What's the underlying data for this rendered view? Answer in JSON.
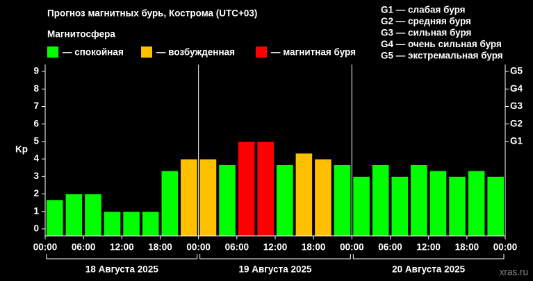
{
  "chart_data": {
    "type": "bar",
    "title": "Прогноз магнитных бурь, Кострома (UTC+03)",
    "legend_title": "Магнитосфера",
    "legend": [
      {
        "label": "— спокойная",
        "color": "#00ff00"
      },
      {
        "label": "— возбужденная",
        "color": "#ffc000"
      },
      {
        "label": "— магнитная буря",
        "color": "#ff0000"
      }
    ],
    "storm_levels": [
      "G1 — слабая буря",
      "G2 — средняя буря",
      "G3 — сильная буря",
      "G4 — очень сильная буря",
      "G5 — экстремальная буря"
    ],
    "ylabel": "Kp",
    "values": [
      1.67,
      2,
      2,
      1,
      1,
      1,
      3.33,
      4,
      4,
      3.67,
      5,
      5,
      3.67,
      4.33,
      4,
      3.67,
      3,
      3.67,
      3,
      3.67,
      3.33,
      3,
      3.33,
      3
    ],
    "colors": [
      "#00ff00",
      "#00ff00",
      "#00ff00",
      "#00ff00",
      "#00ff00",
      "#00ff00",
      "#00ff00",
      "#ffc000",
      "#ffc000",
      "#00ff00",
      "#ff0000",
      "#ff0000",
      "#00ff00",
      "#ffc000",
      "#ffc000",
      "#00ff00",
      "#00ff00",
      "#00ff00",
      "#00ff00",
      "#00ff00",
      "#00ff00",
      "#00ff00",
      "#00ff00",
      "#00ff00"
    ],
    "xtick_labels": [
      "00:00",
      "06:00",
      "12:00",
      "18:00",
      "00:00",
      "06:00",
      "12:00",
      "18:00",
      "00:00",
      "06:00",
      "12:00",
      "18:00",
      "00:00"
    ],
    "days": [
      "18 Августа 2025",
      "19 Августа 2025",
      "20 Августа 2025"
    ],
    "ylim": [
      -0.4,
      9.4
    ],
    "yticks": [
      0,
      1,
      2,
      3,
      4,
      5,
      6,
      7,
      8,
      9
    ],
    "y2ticks": [
      {
        "value": 5,
        "label": "G1"
      },
      {
        "value": 6,
        "label": "G2"
      },
      {
        "value": 7,
        "label": "G3"
      },
      {
        "value": 8,
        "label": "G4"
      },
      {
        "value": 9,
        "label": "G5"
      }
    ],
    "watermark": "xras.ru"
  }
}
